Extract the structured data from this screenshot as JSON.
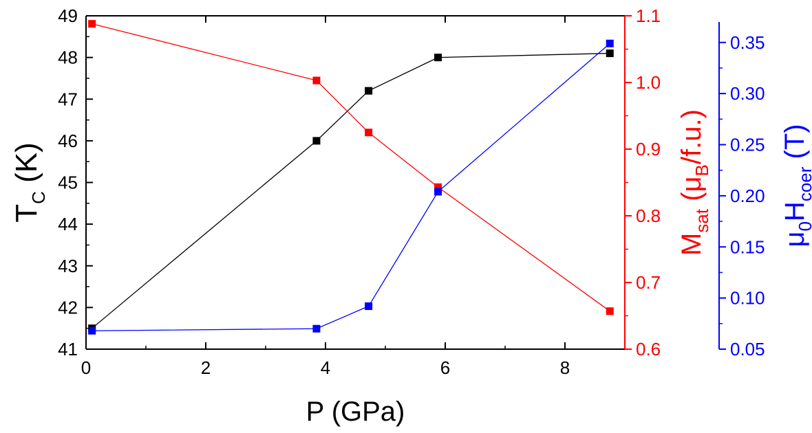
{
  "chart_data": {
    "type": "line",
    "x": [
      0.1,
      3.85,
      4.72,
      5.88,
      8.75
    ],
    "xlabel": "P (GPa)",
    "xlim": [
      0,
      9
    ],
    "xticks": [
      0,
      2,
      4,
      6,
      8
    ],
    "axes": {
      "left": {
        "label_main": "T",
        "label_sub": "C",
        "label_tail": " (K)",
        "ylim": [
          41,
          49
        ],
        "ticks": [
          41,
          42,
          43,
          44,
          45,
          46,
          47,
          48,
          49
        ],
        "color": "#000000"
      },
      "right_inner": {
        "label_main": "M",
        "label_sub": "sat",
        "label_mid": " (μ",
        "label_sub2": "B",
        "label_tail": "/f.u.)",
        "ylim": [
          0.6,
          1.1
        ],
        "ticks": [
          "0.6",
          "0.7",
          "0.8",
          "0.9",
          "1.0",
          "1.1"
        ],
        "color": "#ff0000"
      },
      "right_outer": {
        "label_main": "μ",
        "label_sub": "0",
        "label_mid": "H",
        "label_sub2": "coer",
        "label_tail": " (T)",
        "ylim": [
          0.05,
          0.37
        ],
        "ticks": [
          "0.05",
          "0.10",
          "0.15",
          "0.20",
          "0.25",
          "0.30",
          "0.35"
        ],
        "color": "#0000ff"
      }
    },
    "series": [
      {
        "axis": "left",
        "color": "#000000",
        "values": [
          41.5,
          46.0,
          47.2,
          48.0,
          48.1
        ]
      },
      {
        "axis": "right_inner",
        "color": "#ff0000",
        "values": [
          1.088,
          1.003,
          0.925,
          0.843,
          0.657
        ]
      },
      {
        "axis": "right_outer",
        "color": "#0000ff",
        "values": [
          0.068,
          0.07,
          0.092,
          0.204,
          0.349
        ]
      }
    ],
    "grid": false
  }
}
